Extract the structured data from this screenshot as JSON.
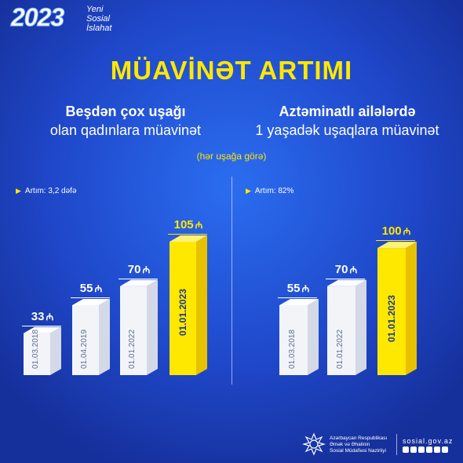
{
  "logo": {
    "year": "2023",
    "line1": "Yeni",
    "line2": "Sosial",
    "line3": "İslahat"
  },
  "title": "MÜAVİNƏT ARTIMI",
  "note": "(hər uşağa görə)",
  "colors": {
    "background": "#1f47c9",
    "title": "#ffe800",
    "bar_white": "#f2f4f8",
    "bar_yellow": "#ffe800"
  },
  "chart_data": [
    {
      "type": "bar",
      "title_bold": "Beşdən çox uşağı",
      "title_rest": "olan qadınlara müavinət",
      "growth": "Artım: 3,2 dəfə",
      "unit": "₼",
      "categories": [
        "01.03.2018",
        "01.04.2019",
        "01.01.2022",
        "01.01.2023"
      ],
      "values": [
        33,
        55,
        70,
        105
      ],
      "value_labels": [
        "33",
        "55",
        "70",
        "105"
      ],
      "highlight_index": 3
    },
    {
      "type": "bar",
      "title_bold": "Aztəminatlı ailələrdə",
      "title_rest": "1 yaşadək uşaqlara müavinət",
      "growth": "Artım: 82%",
      "unit": "₼",
      "categories": [
        "01.03.2018",
        "01.01.2022",
        "01.01.2023"
      ],
      "values": [
        55,
        70,
        100
      ],
      "value_labels": [
        "55",
        "70",
        "100"
      ],
      "highlight_index": 2
    }
  ],
  "footer": {
    "org_line1": "Azərbaycan Respublikası",
    "org_line2": "Əmək və Əhalinin",
    "org_line3": "Sosial Müdafiəsi Nazirliyi",
    "site": "sosial.gov.az",
    "social_icons": [
      "facebook-icon",
      "instagram-icon",
      "telegram-icon",
      "youtube-icon",
      "twitter-icon",
      "linkedin-icon"
    ]
  }
}
